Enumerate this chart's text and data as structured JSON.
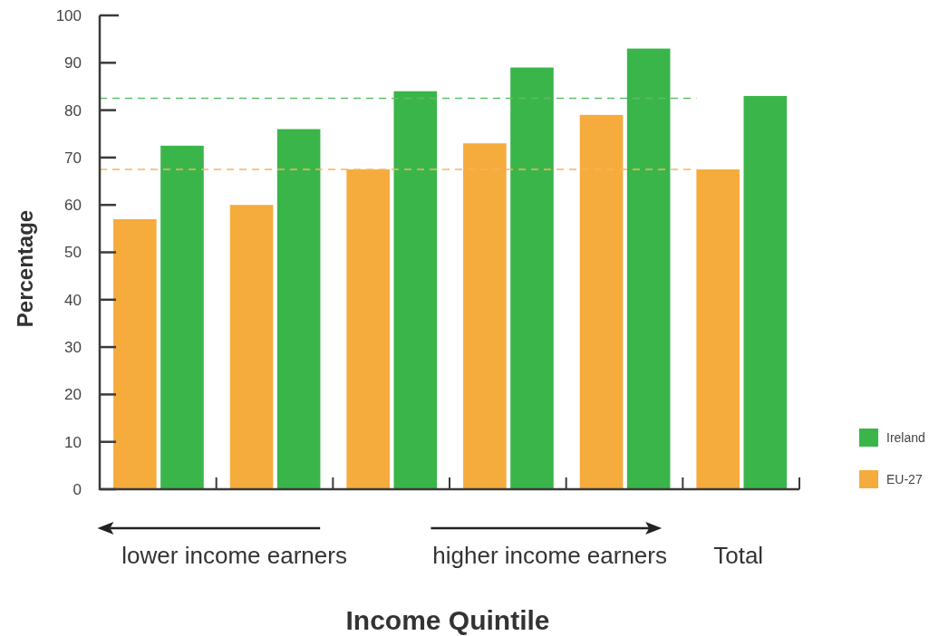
{
  "chart_data": {
    "type": "bar",
    "categories": [
      null,
      null,
      null,
      null,
      null,
      "Total"
    ],
    "series": [
      {
        "name": "EU-27",
        "color": "#f6ab3d",
        "values": [
          57,
          60,
          67.5,
          73,
          79,
          67.5
        ]
      },
      {
        "name": "Ireland",
        "color": "#3ab54a",
        "values": [
          72.5,
          76,
          84,
          89,
          93,
          83
        ]
      }
    ],
    "xlabel": "Income Quintile",
    "ylabel": "Percentage",
    "ylim": [
      0,
      100
    ],
    "yticks": [
      0,
      10,
      20,
      30,
      40,
      50,
      60,
      70,
      80,
      90,
      100
    ],
    "ref_lines": [
      {
        "axis": "y",
        "value": 82.5,
        "color": "#5cbf6a",
        "line_style": "dashed"
      },
      {
        "axis": "y",
        "value": 67.5,
        "color": "#f6b460",
        "line_style": "dashed"
      }
    ],
    "annotations": [
      "lower income earners",
      "higher income earners"
    ],
    "legend": "right"
  }
}
